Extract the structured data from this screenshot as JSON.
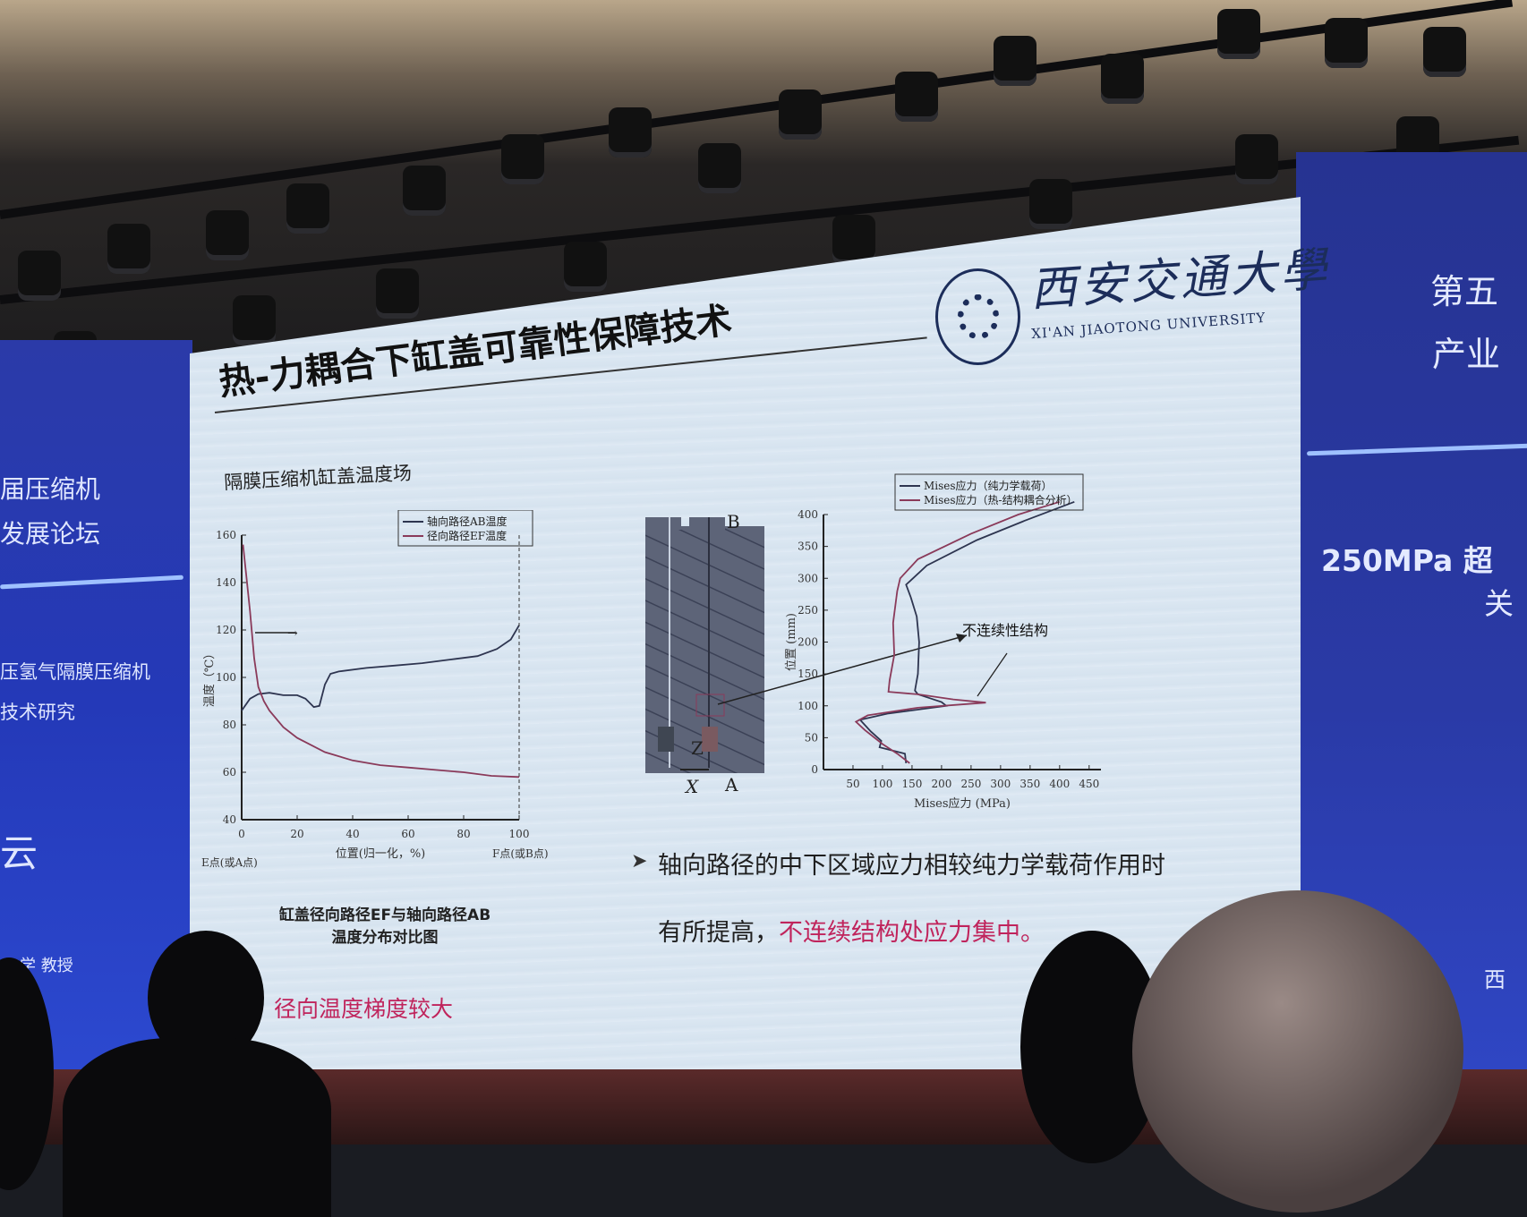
{
  "left_banner": {
    "lines": [
      "届压缩机",
      "发展论坛",
      "压氢气隔膜压缩机",
      "技术研究",
      "云",
      "学 教授"
    ]
  },
  "right_banner": {
    "lines": [
      "第五",
      "产业",
      "250MPa 超",
      "关",
      "西"
    ]
  },
  "slide": {
    "title": "热-力耦合下缸盖可靠性保障技术",
    "subtitle": "隔膜压缩机缸盖温度场",
    "logo": {
      "name_cn": "西安交通大學",
      "name_en": "XI'AN JIAOTONG UNIVERSITY"
    },
    "fem_labels": {
      "top": "B",
      "bottom": "A",
      "axis_x": "X",
      "axis_z": "Z"
    },
    "temp_chart_caption": [
      "缸盖径向路径EF与轴向路径AB",
      "温度分布对比图"
    ],
    "temp_note": "径向温度梯度较大",
    "bullet_marker": "➤",
    "bullet_line1": "轴向路径的中下区域应力相较纯力学载荷作用时",
    "bullet_line2_normal": "有所提高，",
    "bullet_line2_highlight": "不连续结构处应力集中。",
    "colors": {
      "highlight": "#c0245c",
      "banner_blue": "#2a3aa6",
      "slide_bg": "#dbe7f2"
    }
  },
  "chart_data": [
    {
      "type": "line",
      "xlabel": "位置(归一化，%)",
      "ylabel": "温度（℃）",
      "x_start_label": "E点(或A点)",
      "x_end_label": "F点(或B点)",
      "xlim": [
        0,
        100
      ],
      "ylim": [
        40,
        160
      ],
      "xticks": [
        0,
        20,
        40,
        60,
        80,
        100
      ],
      "yticks": [
        40,
        60,
        80,
        100,
        120,
        140,
        160
      ],
      "legend_placement": "top-right",
      "series": [
        {
          "name": "轴向路径AB温度",
          "color": "#2e3550",
          "points": [
            [
              0,
              86
            ],
            [
              3,
              91
            ],
            [
              6,
              93
            ],
            [
              10,
              93.5
            ],
            [
              15,
              92.5
            ],
            [
              20,
              92.5
            ],
            [
              23,
              91
            ],
            [
              26,
              87.5
            ],
            [
              28,
              88
            ],
            [
              30,
              97
            ],
            [
              32,
              101.5
            ],
            [
              35,
              102.5
            ],
            [
              45,
              104
            ],
            [
              55,
              105
            ],
            [
              65,
              106
            ],
            [
              75,
              107.5
            ],
            [
              85,
              109
            ],
            [
              92,
              112
            ],
            [
              97,
              116
            ],
            [
              100,
              122
            ]
          ]
        },
        {
          "name": "径向路径EF温度",
          "color": "#8a3a5a",
          "points": [
            [
              0.5,
              156
            ],
            [
              1.5,
              145
            ],
            [
              3,
              128
            ],
            [
              4.5,
              108
            ],
            [
              6,
              96
            ],
            [
              8,
              90
            ],
            [
              10,
              86
            ],
            [
              15,
              79
            ],
            [
              20,
              74.5
            ],
            [
              30,
              68.5
            ],
            [
              40,
              65
            ],
            [
              50,
              63
            ],
            [
              60,
              62
            ],
            [
              70,
              61
            ],
            [
              80,
              60
            ],
            [
              90,
              58.5
            ],
            [
              100,
              58
            ]
          ]
        }
      ],
      "annotation": "→"
    },
    {
      "type": "line",
      "xlabel": "Mises应力 (MPa)",
      "ylabel": "位置 (mm)",
      "xlim": [
        0,
        470
      ],
      "ylim": [
        0,
        400
      ],
      "xticks": [
        50,
        100,
        150,
        200,
        250,
        300,
        350,
        400,
        450
      ],
      "yticks": [
        0,
        50,
        100,
        150,
        200,
        250,
        300,
        350,
        400
      ],
      "legend_placement": "top",
      "annotation": "不连续性结构",
      "series": [
        {
          "name": "Mises应力（纯力学载荷）",
          "color": "#2e3550",
          "points": [
            [
              140,
              10
            ],
            [
              138,
              25
            ],
            [
              95,
              35
            ],
            [
              98,
              45
            ],
            [
              80,
              60
            ],
            [
              62,
              78
            ],
            [
              110,
              88
            ],
            [
              208,
              100
            ],
            [
              200,
              106
            ],
            [
              180,
              112
            ],
            [
              160,
              118
            ],
            [
              155,
              124
            ],
            [
              160,
              150
            ],
            [
              162,
              200
            ],
            [
              158,
              240
            ],
            [
              148,
              270
            ],
            [
              140,
              290
            ],
            [
              175,
              320
            ],
            [
              260,
              360
            ],
            [
              340,
              390
            ],
            [
              425,
              420
            ]
          ]
        },
        {
          "name": "Mises应力（热-结构耦合分析）",
          "color": "#8a3a5a",
          "points": [
            [
              146,
              10
            ],
            [
              125,
              25
            ],
            [
              100,
              40
            ],
            [
              70,
              62
            ],
            [
              55,
              75
            ],
            [
              75,
              85
            ],
            [
              160,
              97
            ],
            [
              275,
              105
            ],
            [
              220,
              110
            ],
            [
              160,
              118
            ],
            [
              110,
              122
            ],
            [
              112,
              140
            ],
            [
              120,
              180
            ],
            [
              118,
              230
            ],
            [
              125,
              280
            ],
            [
              130,
              300
            ],
            [
              160,
              330
            ],
            [
              250,
              370
            ],
            [
              330,
              400
            ],
            [
              400,
              420
            ]
          ]
        }
      ]
    }
  ]
}
